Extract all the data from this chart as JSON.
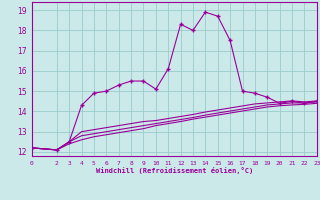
{
  "xlabel": "Windchill (Refroidissement éolien,°C)",
  "xlim": [
    0,
    23
  ],
  "ylim": [
    11.8,
    19.4
  ],
  "xticks": [
    0,
    2,
    3,
    4,
    5,
    6,
    7,
    8,
    9,
    10,
    11,
    12,
    13,
    14,
    15,
    16,
    17,
    18,
    19,
    20,
    21,
    22,
    23
  ],
  "yticks": [
    12,
    13,
    14,
    15,
    16,
    17,
    18,
    19
  ],
  "background_color": "#cce9e9",
  "line_color": "#990099",
  "grid_color": "#99cccc",
  "lines": [
    {
      "x": [
        0,
        2,
        3,
        4,
        5,
        6,
        7,
        8,
        9,
        10,
        11,
        12,
        13,
        14,
        15,
        16,
        17,
        18,
        19,
        20,
        21,
        22,
        23
      ],
      "y": [
        12.2,
        12.1,
        12.5,
        14.3,
        14.9,
        15.0,
        15.3,
        15.5,
        15.5,
        15.1,
        16.1,
        18.3,
        18.0,
        18.9,
        18.7,
        17.5,
        15.0,
        14.9,
        14.7,
        14.4,
        14.5,
        14.4,
        14.5
      ],
      "marker": "+"
    },
    {
      "x": [
        0,
        2,
        3,
        4,
        5,
        6,
        7,
        8,
        9,
        10,
        11,
        12,
        13,
        14,
        15,
        16,
        17,
        18,
        19,
        20,
        21,
        22,
        23
      ],
      "y": [
        12.2,
        12.1,
        12.5,
        13.0,
        13.1,
        13.2,
        13.3,
        13.4,
        13.5,
        13.55,
        13.65,
        13.75,
        13.85,
        13.97,
        14.07,
        14.17,
        14.27,
        14.37,
        14.42,
        14.47,
        14.52,
        14.47,
        14.52
      ],
      "marker": null
    },
    {
      "x": [
        0,
        2,
        3,
        4,
        5,
        6,
        7,
        8,
        9,
        10,
        11,
        12,
        13,
        14,
        15,
        16,
        17,
        18,
        19,
        20,
        21,
        22,
        23
      ],
      "y": [
        12.2,
        12.1,
        12.5,
        12.8,
        12.9,
        13.0,
        13.1,
        13.2,
        13.3,
        13.4,
        13.5,
        13.6,
        13.7,
        13.82,
        13.92,
        14.02,
        14.12,
        14.22,
        14.32,
        14.37,
        14.42,
        14.42,
        14.47
      ],
      "marker": null
    },
    {
      "x": [
        0,
        2,
        3,
        4,
        5,
        6,
        7,
        8,
        9,
        10,
        11,
        12,
        13,
        14,
        15,
        16,
        17,
        18,
        19,
        20,
        21,
        22,
        23
      ],
      "y": [
        12.2,
        12.1,
        12.4,
        12.6,
        12.75,
        12.85,
        12.95,
        13.05,
        13.15,
        13.3,
        13.4,
        13.5,
        13.62,
        13.72,
        13.82,
        13.92,
        14.02,
        14.12,
        14.22,
        14.28,
        14.32,
        14.35,
        14.4
      ],
      "marker": null
    }
  ]
}
